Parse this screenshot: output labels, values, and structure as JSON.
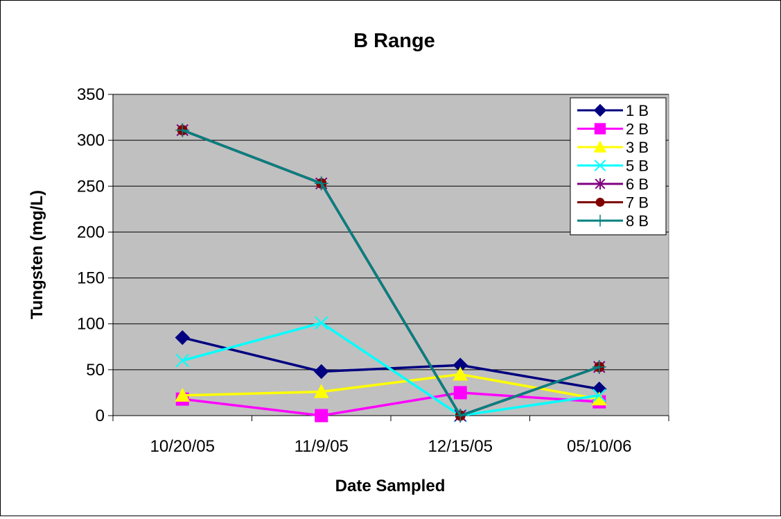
{
  "chart_data": {
    "type": "line",
    "title": "B Range",
    "xlabel": "Date Sampled",
    "ylabel": "Tungsten (mg/L)",
    "categories": [
      "10/20/05",
      "11/9/05",
      "12/15/05",
      "05/10/06"
    ],
    "ylim": [
      0,
      350
    ],
    "yticks": [
      0,
      50,
      100,
      150,
      200,
      250,
      300,
      350
    ],
    "grid": true,
    "legend_position": "top-right",
    "plot_background": "#c0c0c0",
    "series": [
      {
        "name": "1 B",
        "values": [
          85,
          48,
          55,
          29
        ],
        "color": "#000080",
        "marker": "diamond"
      },
      {
        "name": "2 B",
        "values": [
          18,
          0,
          25,
          15
        ],
        "color": "#ff00ff",
        "marker": "square"
      },
      {
        "name": "3 B",
        "values": [
          22,
          26,
          45,
          18
        ],
        "color": "#ffff00",
        "marker": "triangle"
      },
      {
        "name": "5 B",
        "values": [
          60,
          101,
          0,
          22
        ],
        "color": "#00ffff",
        "marker": "x"
      },
      {
        "name": "6 B",
        "values": [
          311,
          253,
          0,
          53
        ],
        "color": "#800080",
        "marker": "star"
      },
      {
        "name": "7 B",
        "values": [
          311,
          253,
          0,
          53
        ],
        "color": "#800000",
        "marker": "circle"
      },
      {
        "name": "8 B",
        "values": [
          311,
          253,
          0,
          53
        ],
        "color": "#008080",
        "marker": "plus"
      }
    ]
  }
}
